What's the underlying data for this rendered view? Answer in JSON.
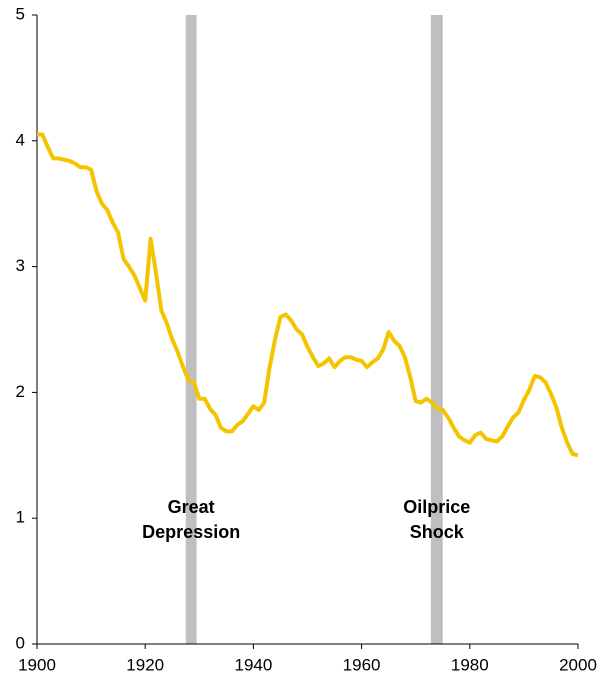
{
  "chart_data": {
    "type": "line",
    "x": [
      1900,
      1901,
      1902,
      1903,
      1904,
      1905,
      1906,
      1907,
      1908,
      1909,
      1910,
      1911,
      1912,
      1913,
      1914,
      1915,
      1916,
      1917,
      1918,
      1919,
      1920,
      1921,
      1922,
      1923,
      1924,
      1925,
      1926,
      1927,
      1928,
      1929,
      1930,
      1931,
      1932,
      1933,
      1934,
      1935,
      1936,
      1937,
      1938,
      1939,
      1940,
      1941,
      1942,
      1943,
      1944,
      1945,
      1946,
      1947,
      1948,
      1949,
      1950,
      1951,
      1952,
      1953,
      1954,
      1955,
      1956,
      1957,
      1958,
      1959,
      1960,
      1961,
      1962,
      1963,
      1964,
      1965,
      1966,
      1967,
      1968,
      1969,
      1970,
      1971,
      1972,
      1973,
      1974,
      1975,
      1976,
      1977,
      1978,
      1979,
      1980,
      1981,
      1982,
      1983,
      1984,
      1985,
      1986,
      1987,
      1988,
      1989,
      1990,
      1991,
      1992,
      1993,
      1994,
      1995,
      1996,
      1997,
      1998,
      1999,
      2000
    ],
    "series": [
      {
        "color": "#f5c400",
        "values": [
          4.05,
          4.05,
          3.95,
          3.86,
          3.86,
          3.85,
          3.84,
          3.82,
          3.79,
          3.79,
          3.77,
          3.6,
          3.5,
          3.45,
          3.35,
          3.27,
          3.06,
          3.0,
          2.93,
          2.83,
          2.73,
          3.22,
          2.95,
          2.65,
          2.55,
          2.42,
          2.32,
          2.2,
          2.1,
          2.08,
          1.95,
          1.95,
          1.87,
          1.82,
          1.72,
          1.69,
          1.69,
          1.74,
          1.77,
          1.83,
          1.89,
          1.86,
          1.92,
          2.2,
          2.42,
          2.6,
          2.62,
          2.57,
          2.5,
          2.46,
          2.36,
          2.28,
          2.21,
          2.23,
          2.27,
          2.2,
          2.25,
          2.28,
          2.28,
          2.26,
          2.25,
          2.2,
          2.24,
          2.27,
          2.34,
          2.48,
          2.41,
          2.37,
          2.28,
          2.12,
          1.93,
          1.92,
          1.95,
          1.92,
          1.87,
          1.86,
          1.8,
          1.72,
          1.65,
          1.62,
          1.6,
          1.66,
          1.68,
          1.63,
          1.62,
          1.61,
          1.65,
          1.73,
          1.8,
          1.84,
          1.94,
          2.02,
          2.13,
          2.12,
          2.08,
          1.99,
          1.88,
          1.72,
          1.6,
          1.51,
          1.5
        ]
      }
    ],
    "xlim": [
      1900,
      2000
    ],
    "xticks": [
      1900,
      1920,
      1940,
      1960,
      1980,
      2000
    ],
    "ylim": [
      0,
      5
    ],
    "yticks": [
      0,
      1,
      2,
      3,
      4,
      5
    ],
    "shaded": [
      {
        "start": 1927.5,
        "end": 1929.5,
        "color": "#bfbfbf",
        "label": [
          "Great",
          "Depression"
        ]
      },
      {
        "start": 1972.8,
        "end": 1975.0,
        "color": "#bfbfbf",
        "label": [
          "Oilprice",
          "Shock"
        ]
      }
    ]
  }
}
